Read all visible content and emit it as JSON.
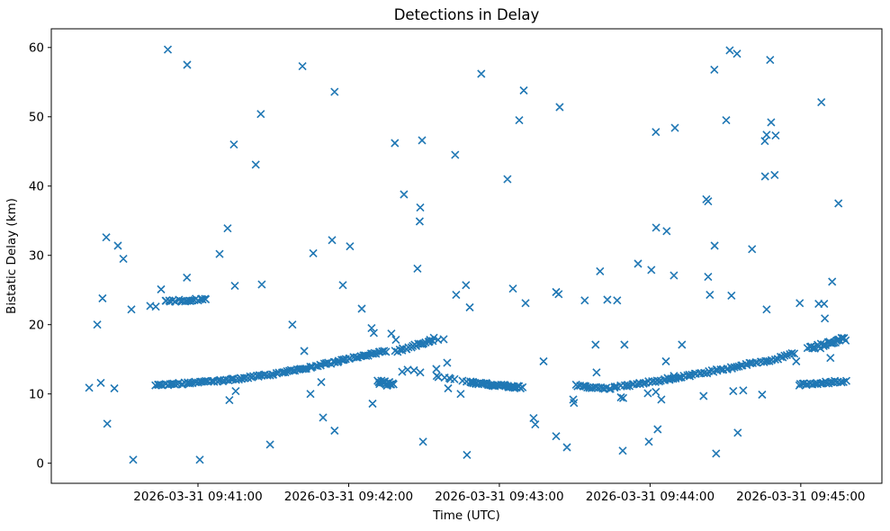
{
  "chart_data": {
    "type": "scatter",
    "title": "Detections in Delay",
    "xlabel": "Time (UTC)",
    "ylabel": "Bistatic Delay (km)",
    "marker": "x",
    "marker_color": "#1f77b4",
    "background_color": "#ffffff",
    "axis_color": "#000000",
    "grid": false,
    "legend": null,
    "x_axis": {
      "unit": "seconds after 2026-03-31 09:40:00 UTC",
      "lim": [
        1.6,
        332.3
      ],
      "ticks": [
        {
          "value": 60,
          "label": "2026-03-31 09:41:00"
        },
        {
          "value": 120,
          "label": "2026-03-31 09:42:00"
        },
        {
          "value": 180,
          "label": "2026-03-31 09:43:00"
        },
        {
          "value": 240,
          "label": "2026-03-31 09:44:00"
        },
        {
          "value": 300,
          "label": "2026-03-31 09:45:00"
        }
      ]
    },
    "y_axis": {
      "lim": [
        -2.9,
        62.7
      ],
      "ticks": [
        0,
        10,
        20,
        30,
        40,
        50,
        60
      ]
    },
    "points": [
      [
        48,
        59.7
      ],
      [
        55.7,
        57.5
      ],
      [
        85,
        50.4
      ],
      [
        74.3,
        46.0
      ],
      [
        83,
        43.1
      ],
      [
        71.8,
        33.9
      ],
      [
        23.5,
        32.6
      ],
      [
        28.1,
        31.4
      ],
      [
        68.6,
        30.2
      ],
      [
        30.3,
        29.5
      ],
      [
        101.6,
        57.3
      ],
      [
        114.4,
        53.6
      ],
      [
        138.4,
        46.2
      ],
      [
        149.2,
        46.6
      ],
      [
        162.4,
        44.5
      ],
      [
        142,
        38.8
      ],
      [
        148.5,
        36.9
      ],
      [
        148.3,
        34.9
      ],
      [
        113.4,
        32.2
      ],
      [
        120.5,
        31.3
      ],
      [
        105.9,
        30.3
      ],
      [
        172.8,
        56.2
      ],
      [
        189.7,
        53.8
      ],
      [
        204,
        51.4
      ],
      [
        187.9,
        49.5
      ],
      [
        242.3,
        47.8
      ],
      [
        183.2,
        41.0
      ],
      [
        242.4,
        34.0
      ],
      [
        246.6,
        33.5
      ],
      [
        271.7,
        59.6
      ],
      [
        274.6,
        59.1
      ],
      [
        287.8,
        58.2
      ],
      [
        265.6,
        56.8
      ],
      [
        308.2,
        52.1
      ],
      [
        270.3,
        49.5
      ],
      [
        249.9,
        48.4
      ],
      [
        288.2,
        49.2
      ],
      [
        286.4,
        47.4
      ],
      [
        290,
        47.3
      ],
      [
        285.7,
        46.5
      ],
      [
        285.8,
        41.4
      ],
      [
        289.6,
        41.6
      ],
      [
        262.4,
        38.1
      ],
      [
        263.1,
        37.8
      ],
      [
        315,
        37.5
      ],
      [
        265.7,
        31.4
      ],
      [
        280.6,
        30.9
      ],
      [
        55.6,
        26.8
      ],
      [
        45.3,
        25.1
      ],
      [
        74.7,
        25.6
      ],
      [
        85.4,
        25.8
      ],
      [
        22,
        23.8
      ],
      [
        33.5,
        22.2
      ],
      [
        19.9,
        20.0
      ],
      [
        41,
        22.7
      ],
      [
        43.2,
        22.6
      ],
      [
        147.4,
        28.1
      ],
      [
        117.7,
        25.7
      ],
      [
        166.7,
        25.7
      ],
      [
        162.8,
        24.3
      ],
      [
        125.2,
        22.3
      ],
      [
        97.6,
        20.0
      ],
      [
        129.1,
        19.5
      ],
      [
        235.2,
        28.8
      ],
      [
        240.5,
        27.9
      ],
      [
        220.1,
        27.7
      ],
      [
        249.5,
        27.1
      ],
      [
        185.4,
        25.2
      ],
      [
        202.6,
        24.7
      ],
      [
        203.6,
        24.4
      ],
      [
        190.4,
        23.1
      ],
      [
        214,
        23.5
      ],
      [
        223,
        23.6
      ],
      [
        226.9,
        23.5
      ],
      [
        168.2,
        22.5
      ],
      [
        263.1,
        26.9
      ],
      [
        263.8,
        24.3
      ],
      [
        272.4,
        24.2
      ],
      [
        286.4,
        22.2
      ],
      [
        299.6,
        23.1
      ],
      [
        307.1,
        23.0
      ],
      [
        309.3,
        23.0
      ],
      [
        309.6,
        20.9
      ],
      [
        312.5,
        26.2
      ],
      [
        102.3,
        16.2
      ],
      [
        130,
        18.8
      ],
      [
        137,
        18.7
      ],
      [
        138.8,
        17.8
      ],
      [
        152.4,
        17.8
      ],
      [
        153.9,
        18.1
      ],
      [
        155.6,
        17.8
      ],
      [
        157.8,
        17.9
      ],
      [
        141.3,
        13.2
      ],
      [
        143.5,
        13.5
      ],
      [
        146,
        13.4
      ],
      [
        148.5,
        13.1
      ],
      [
        159.2,
        14.5
      ],
      [
        154.9,
        13.6
      ],
      [
        197.6,
        14.7
      ],
      [
        246.3,
        14.7
      ],
      [
        218.3,
        17.1
      ],
      [
        229.8,
        17.1
      ],
      [
        218.7,
        13.1
      ],
      [
        247,
        12.3
      ],
      [
        249.5,
        12.6
      ],
      [
        252.7,
        17.1
      ],
      [
        298.2,
        14.7
      ],
      [
        311.8,
        15.2
      ],
      [
        16.7,
        10.9
      ],
      [
        21.3,
        11.6
      ],
      [
        26.7,
        10.8
      ],
      [
        75,
        10.4
      ],
      [
        72.5,
        9.1
      ],
      [
        23.9,
        5.7
      ],
      [
        34.2,
        0.5
      ],
      [
        60.7,
        0.5
      ],
      [
        104.8,
        10.0
      ],
      [
        109.1,
        11.7
      ],
      [
        129.5,
        8.6
      ],
      [
        109.8,
        6.6
      ],
      [
        114.4,
        4.7
      ],
      [
        88.7,
        2.7
      ],
      [
        149.6,
        3.1
      ],
      [
        167.1,
        1.2
      ],
      [
        159.6,
        10.8
      ],
      [
        164.6,
        10.0
      ],
      [
        193.6,
        6.5
      ],
      [
        194.3,
        5.6
      ],
      [
        209.4,
        9.2
      ],
      [
        209.7,
        8.7
      ],
      [
        202.6,
        3.9
      ],
      [
        206.9,
        2.3
      ],
      [
        229.1,
        1.8
      ],
      [
        239.5,
        3.1
      ],
      [
        243,
        4.9
      ],
      [
        266.3,
        1.4
      ],
      [
        274.9,
        4.4
      ],
      [
        261.3,
        9.7
      ],
      [
        273.1,
        10.4
      ],
      [
        277.1,
        10.5
      ],
      [
        284.6,
        9.9
      ],
      [
        228.4,
        9.5
      ],
      [
        229.3,
        9.4
      ],
      [
        239.1,
        10.1
      ],
      [
        242.3,
        10.3
      ],
      [
        244.5,
        9.2
      ]
    ],
    "dense_tracks": [
      {
        "name": "rising-track-0941",
        "knots": [
          [
            43,
            11.3
          ],
          [
            56,
            11.55
          ],
          [
            71,
            11.95
          ],
          [
            86,
            12.65
          ],
          [
            100,
            13.5
          ],
          [
            114,
            14.55
          ],
          [
            126,
            15.5
          ],
          [
            135,
            16.2
          ]
        ],
        "n": 118,
        "y_jitter": 0.13
      },
      {
        "name": "cluster-24km",
        "knots": [
          [
            46.7,
            23.3
          ],
          [
            63.2,
            23.7
          ]
        ],
        "n": 22,
        "y_jitter": 0.15
      },
      {
        "name": "blob-12km",
        "knots": [
          [
            131.6,
            11.75
          ],
          [
            137.7,
            11.25
          ]
        ],
        "n": 18,
        "y_jitter": 0.33
      },
      {
        "name": "chevron-rise",
        "knots": [
          [
            138.8,
            16.15
          ],
          [
            153.1,
            17.7
          ]
        ],
        "n": 20,
        "y_jitter": 0.15
      },
      {
        "name": "descend-sparse",
        "knots": [
          [
            154.2,
            12.6
          ],
          [
            168.2,
            11.7
          ]
        ],
        "n": 9,
        "y_jitter": 0.1
      },
      {
        "name": "descend-dense",
        "knots": [
          [
            168.2,
            11.7
          ],
          [
            178,
            11.25
          ],
          [
            189,
            10.95
          ]
        ],
        "n": 40,
        "y_jitter": 0.17
      },
      {
        "name": "rising-track-0944",
        "knots": [
          [
            210.4,
            11.25
          ],
          [
            217,
            10.9
          ],
          [
            224,
            10.85
          ],
          [
            232,
            11.3
          ],
          [
            243,
            11.9
          ],
          [
            252,
            12.4
          ],
          [
            261,
            13.0
          ],
          [
            271,
            13.7
          ],
          [
            282,
            14.5
          ],
          [
            291,
            15.1
          ],
          [
            297,
            15.9
          ]
        ],
        "n": 105,
        "y_jitter": 0.15
      },
      {
        "name": "upper-right-band",
        "knots": [
          [
            302.9,
            16.4
          ],
          [
            317.9,
            17.9
          ]
        ],
        "n": 26,
        "y_jitter": 0.35
      },
      {
        "name": "lower-right-band",
        "knots": [
          [
            299.3,
            11.35
          ],
          [
            317.9,
            11.85
          ]
        ],
        "n": 28,
        "y_jitter": 0.15
      }
    ]
  }
}
